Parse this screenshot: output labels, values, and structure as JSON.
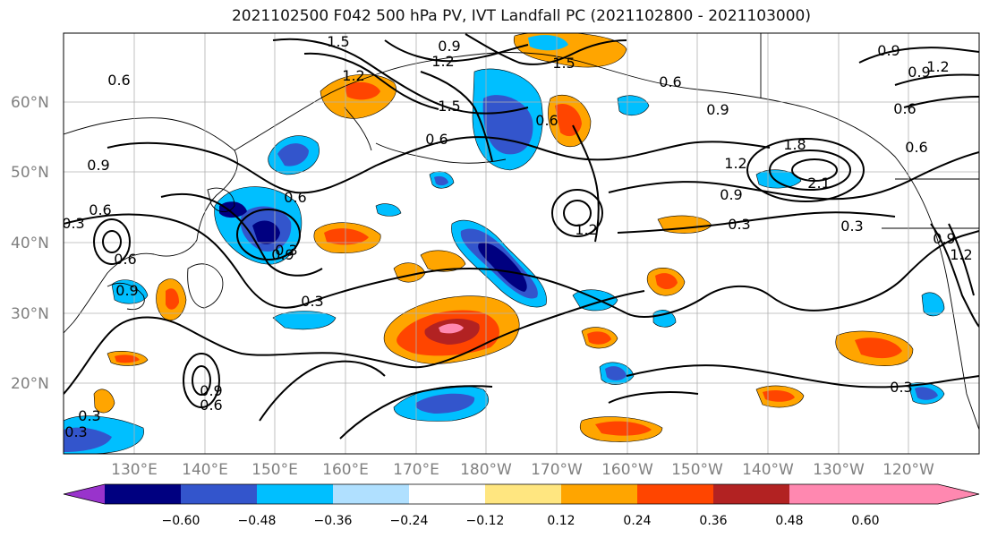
{
  "title": "2021102500 F042 500 hPa PV, IVT Landfall PC (2021102800 - 2021103000)",
  "lat_labels": [
    "60°N",
    "50°N",
    "40°N",
    "30°N",
    "20°N"
  ],
  "lon_labels": [
    "130°E",
    "140°E",
    "150°E",
    "160°E",
    "170°E",
    "180°W",
    "170°W",
    "160°W",
    "150°W",
    "140°W",
    "130°W",
    "120°W"
  ],
  "colorbar": {
    "tick_labels": [
      "−0.60",
      "−0.48",
      "−0.36",
      "−0.24",
      "−0.12",
      "0.12",
      "0.24",
      "0.36",
      "0.48",
      "0.60"
    ],
    "colors": [
      "#9933cc",
      "#000080",
      "#3355cc",
      "#00bfff",
      "#b0e0ff",
      "#ffffff",
      "#ffe680",
      "#ffa500",
      "#ff4500",
      "#b22222",
      "#ff88b0"
    ]
  },
  "contour_labels": [
    "1.5",
    "0.9",
    "1.2",
    "1.5",
    "1.2",
    "1.5",
    "0.6",
    "0.6",
    "0.6",
    "0.9",
    "1.8",
    "1.2",
    "2.1",
    "0.9",
    "0.6",
    "0.3",
    "0.9",
    "1.2",
    "0.9",
    "0.6",
    "0.9",
    "0.6",
    "0.6",
    "0.3",
    "0.6",
    "0.9",
    "1.2",
    "0.3",
    "0.3",
    "0.3",
    "0.9",
    "1.2",
    "0.9",
    "0.3",
    "0.6",
    "0.6",
    "0.9",
    "0.3",
    "0.3"
  ]
}
